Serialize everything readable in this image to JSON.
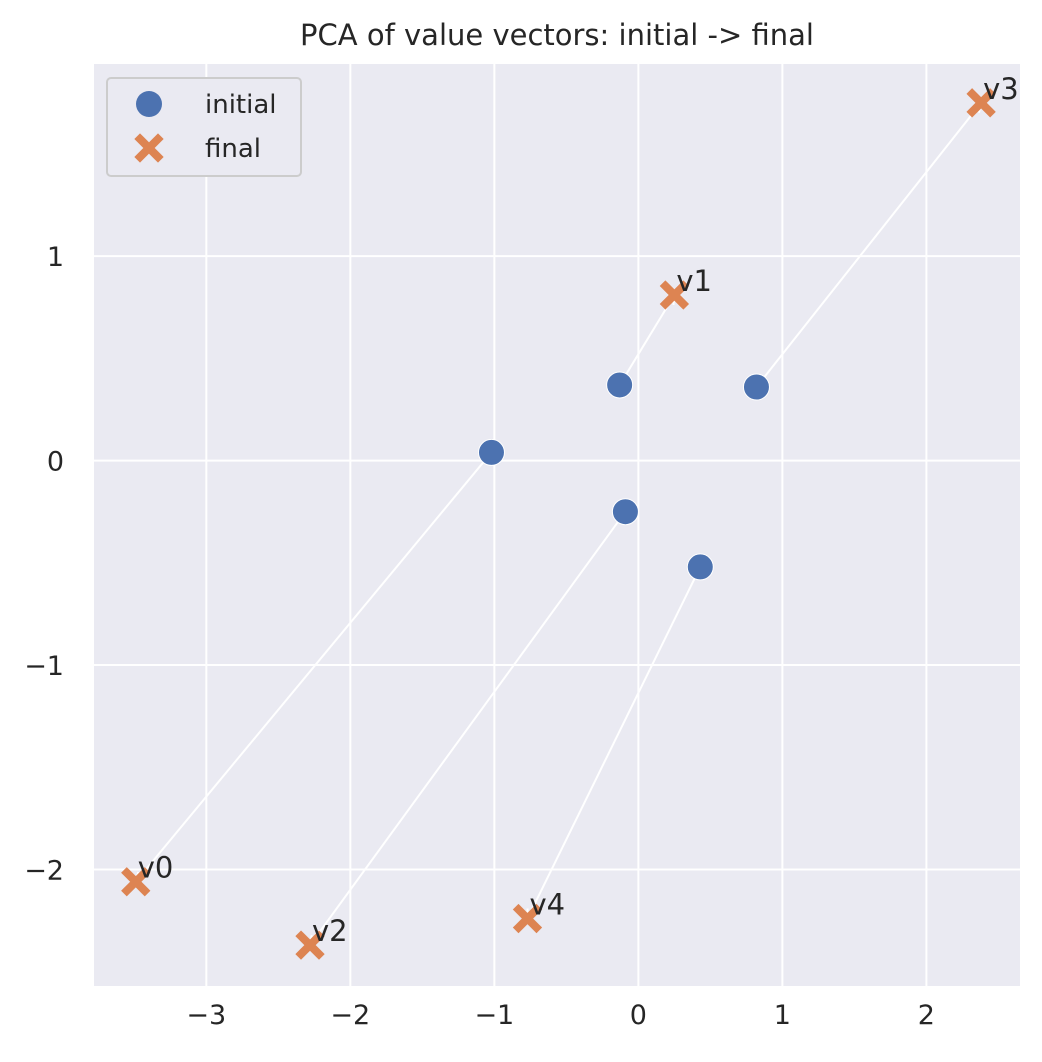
{
  "chart_data": {
    "type": "scatter",
    "title": "PCA of value vectors: initial -> final",
    "xlim": [
      -3.78,
      2.65
    ],
    "ylim": [
      -2.57,
      1.94
    ],
    "xticks": [
      -3,
      -2,
      -1,
      0,
      1,
      2
    ],
    "yticks": [
      -2,
      -1,
      0,
      1
    ],
    "xtick_labels": [
      "−3",
      "−2",
      "−1",
      "0",
      "1",
      "2"
    ],
    "ytick_labels": [
      "−2",
      "−1",
      "0",
      "1"
    ],
    "grid": true,
    "legend_position": "top-left",
    "series": [
      {
        "name": "initial",
        "marker": "circle",
        "color": "#4c72b0"
      },
      {
        "name": "final",
        "marker": "x",
        "color": "#dd8452"
      }
    ],
    "points": [
      {
        "label": "v0",
        "initial": [
          -1.02,
          0.04
        ],
        "final": [
          -3.49,
          -2.06
        ]
      },
      {
        "label": "v1",
        "initial": [
          -0.13,
          0.37
        ],
        "final": [
          0.25,
          0.81
        ]
      },
      {
        "label": "v2",
        "initial": [
          -0.09,
          -0.25
        ],
        "final": [
          -2.28,
          -2.37
        ]
      },
      {
        "label": "v3",
        "initial": [
          0.82,
          0.36
        ],
        "final": [
          2.38,
          1.75
        ]
      },
      {
        "label": "v4",
        "initial": [
          0.43,
          -0.52
        ],
        "final": [
          -0.77,
          -2.24
        ]
      }
    ]
  }
}
